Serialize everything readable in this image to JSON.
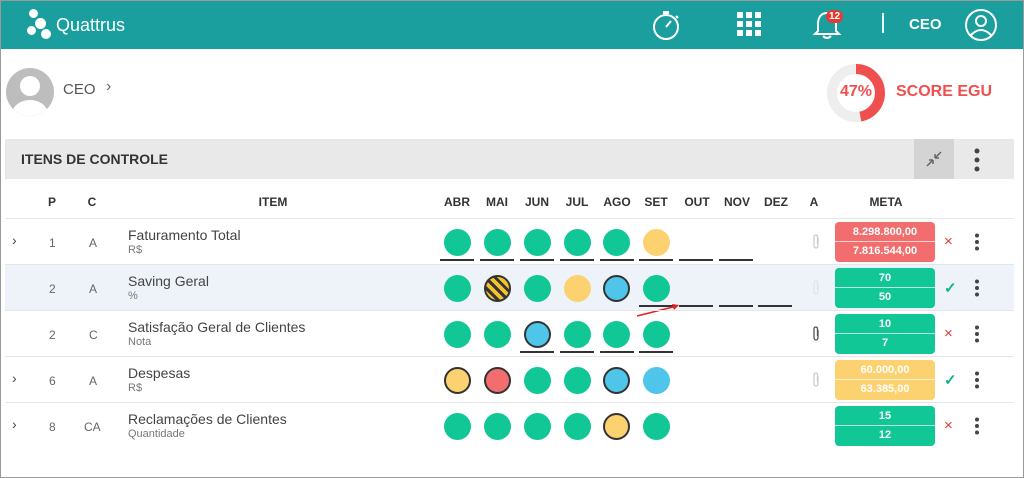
{
  "app": {
    "brand": "Quattrus",
    "role": "CEO",
    "notifications": "12"
  },
  "profile": {
    "name": "CEO",
    "chevron": "›"
  },
  "score": {
    "value": "47%",
    "label": "SCORE EGU",
    "fraction": 0.47,
    "color": "#ef4f4f"
  },
  "section": {
    "title": "ITENS DE CONTROLE"
  },
  "columns": {
    "p": "P",
    "c": "C",
    "item": "ITEM",
    "months": [
      "ABR",
      "MAI",
      "JUN",
      "JUL",
      "AGO",
      "SET",
      "OUT",
      "NOV",
      "DEZ"
    ],
    "a": "A",
    "meta": "META"
  },
  "colors": {
    "green": "#10c795",
    "yellow": "#fcd271",
    "red": "#f26d6d",
    "blue": "#4fc5ea",
    "teal_bar": "#1a9e9e"
  },
  "rows": [
    {
      "expander": "›",
      "p": "1",
      "c": "A",
      "name": "Faturamento Total",
      "unit": "R$",
      "meta1": "8.298.800,00",
      "meta2": "7.816.544,00",
      "status": "×"
    },
    {
      "expander": "",
      "p": "2",
      "c": "A",
      "name": "Saving Geral",
      "unit": "%",
      "meta1": "70",
      "meta2": "50",
      "status": "✓"
    },
    {
      "expander": "",
      "p": "2",
      "c": "C",
      "name": "Satisfação Geral de Clientes",
      "unit": "Nota",
      "meta1": "10",
      "meta2": "7",
      "status": "×"
    },
    {
      "expander": "›",
      "p": "6",
      "c": "A",
      "name": "Despesas",
      "unit": "R$",
      "meta1": "60.000,00",
      "meta2": "63.385,00",
      "status": "✓"
    },
    {
      "expander": "›",
      "p": "8",
      "c": "CA",
      "name": "Reclamações de Clientes",
      "unit": "Quantidade",
      "meta1": "15",
      "meta2": "12",
      "status": "×"
    }
  ]
}
